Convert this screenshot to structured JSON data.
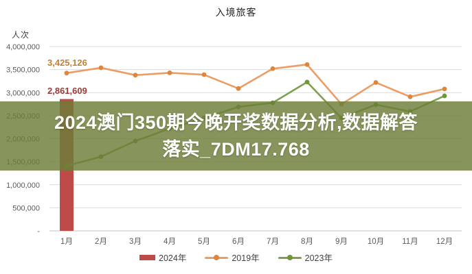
{
  "title": "入境旅客",
  "y_axis_unit": "人次",
  "annotations": {
    "jan_2019": "3,425,126",
    "jan_2024": "2,861,609"
  },
  "overlay": {
    "line1": "2024澳门350期今晚开奖数据分析,数据解答",
    "line2": "落实_7DM17.768",
    "bg_color": "#6d7e38",
    "text_color": "#ffffff"
  },
  "chart_data": {
    "type": "combo-bar-line",
    "title": "入境旅客",
    "ylabel": "人次",
    "ylim": [
      0,
      4000000
    ],
    "grid": true,
    "legend_position": "bottom",
    "categories": [
      "1月",
      "2月",
      "3月",
      "4月",
      "5月",
      "6月",
      "7月",
      "8月",
      "9月",
      "10月",
      "11月",
      "12月"
    ],
    "y_ticks": [
      [
        4000000,
        "4,000,000"
      ],
      [
        3500000,
        "3,500,000"
      ],
      [
        3000000,
        "3,000,000"
      ],
      [
        2500000,
        "2,500,000"
      ],
      [
        2000000,
        "2,000,000"
      ],
      [
        1500000,
        "1,500,000"
      ],
      [
        1000000,
        "1,000,000"
      ],
      [
        500000,
        "500,000"
      ],
      [
        0,
        "-"
      ]
    ],
    "series": [
      {
        "name": "2024年",
        "type": "bar",
        "color": "#be4b48",
        "values": [
          2861609,
          null,
          null,
          null,
          null,
          null,
          null,
          null,
          null,
          null,
          null,
          null
        ]
      },
      {
        "name": "2019年",
        "type": "line",
        "color": "#eb9d63",
        "marker_color": "#e0863c",
        "values": [
          3425126,
          3540000,
          3380000,
          3430000,
          3390000,
          3090000,
          3520000,
          3610000,
          2750000,
          3220000,
          2910000,
          3080000
        ]
      },
      {
        "name": "2023年",
        "type": "line",
        "color": "#7ea04c",
        "marker_color": "#6f9739",
        "values": [
          1410000,
          1610000,
          1950000,
          2220000,
          2450000,
          2690000,
          2780000,
          3230000,
          2450000,
          2740000,
          2590000,
          2930000
        ]
      }
    ],
    "data_labels": [
      {
        "series": "2019年",
        "category": "1月",
        "text": "3,425,126"
      },
      {
        "series": "2024年",
        "category": "1月",
        "text": "2,861,609"
      }
    ]
  }
}
